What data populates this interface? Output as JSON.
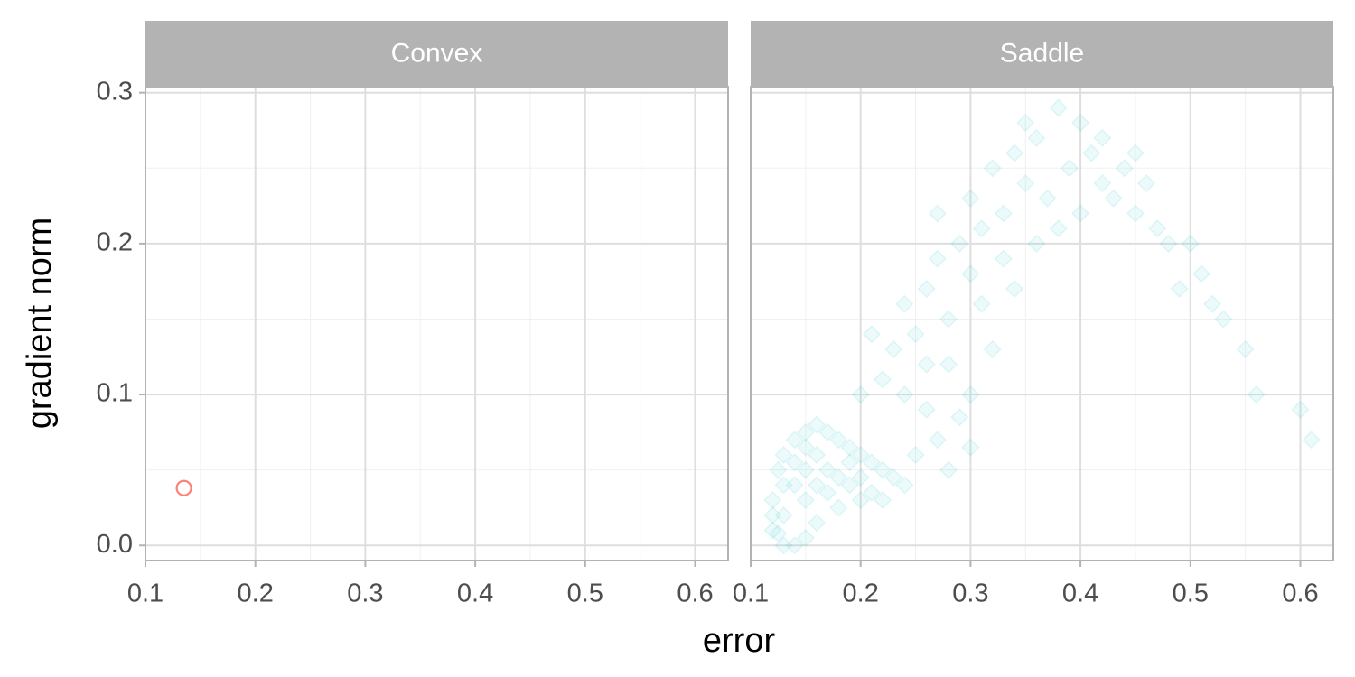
{
  "chart_data": {
    "type": "scatter",
    "xlabel": "error",
    "ylabel": "gradient norm",
    "xlim": [
      0.1,
      0.63
    ],
    "ylim": [
      -0.01,
      0.304
    ],
    "xticks": [
      0.1,
      0.2,
      0.3,
      0.4,
      0.5,
      0.6
    ],
    "yticks": [
      {
        "value": 0,
        "label": "0.0"
      },
      0.1,
      0.2,
      0.3
    ],
    "grid": true,
    "panels": [
      {
        "title": "Convex",
        "color": "#F8766D",
        "marker": "circle",
        "alpha": 0.9,
        "x": [
          0.135
        ],
        "y": [
          0.038
        ]
      },
      {
        "title": "Saddle",
        "color": "#00BFC4",
        "marker": "diamond",
        "alpha": 0.22,
        "x": [
          0.12,
          0.13,
          0.14,
          0.15,
          0.12,
          0.125,
          0.13,
          0.14,
          0.15,
          0.16,
          0.17,
          0.18,
          0.19,
          0.2,
          0.21,
          0.22,
          0.23,
          0.2,
          0.18,
          0.16,
          0.13,
          0.14,
          0.15,
          0.16,
          0.17,
          0.18,
          0.19,
          0.15,
          0.17,
          0.14,
          0.13,
          0.12,
          0.16,
          0.2,
          0.21,
          0.24,
          0.22,
          0.19,
          0.15,
          0.125,
          0.25,
          0.27,
          0.28,
          0.3,
          0.29,
          0.26,
          0.24,
          0.22,
          0.2,
          0.23,
          0.25,
          0.21,
          0.24,
          0.26,
          0.28,
          0.27,
          0.29,
          0.3,
          0.31,
          0.33,
          0.3,
          0.32,
          0.34,
          0.35,
          0.36,
          0.38,
          0.4,
          0.41,
          0.39,
          0.42,
          0.44,
          0.43,
          0.45,
          0.46,
          0.47,
          0.48,
          0.5,
          0.51,
          0.49,
          0.52,
          0.53,
          0.55,
          0.56,
          0.6,
          0.61,
          0.37,
          0.35,
          0.33,
          0.31,
          0.28,
          0.3,
          0.32,
          0.26,
          0.36,
          0.4,
          0.38,
          0.45,
          0.42,
          0.34,
          0.27
        ],
        "y": [
          0.01,
          0.0,
          0.0,
          0.005,
          0.03,
          0.05,
          0.06,
          0.07,
          0.075,
          0.08,
          0.075,
          0.07,
          0.065,
          0.06,
          0.055,
          0.05,
          0.045,
          0.03,
          0.025,
          0.015,
          0.02,
          0.04,
          0.05,
          0.06,
          0.05,
          0.045,
          0.04,
          0.03,
          0.035,
          0.055,
          0.04,
          0.02,
          0.04,
          0.045,
          0.035,
          0.04,
          0.03,
          0.055,
          0.065,
          0.008,
          0.06,
          0.07,
          0.05,
          0.065,
          0.085,
          0.09,
          0.1,
          0.11,
          0.1,
          0.13,
          0.14,
          0.14,
          0.16,
          0.17,
          0.15,
          0.19,
          0.2,
          0.18,
          0.21,
          0.22,
          0.23,
          0.25,
          0.26,
          0.28,
          0.27,
          0.29,
          0.28,
          0.26,
          0.25,
          0.27,
          0.25,
          0.23,
          0.22,
          0.24,
          0.21,
          0.2,
          0.2,
          0.18,
          0.17,
          0.16,
          0.15,
          0.13,
          0.1,
          0.09,
          0.07,
          0.23,
          0.24,
          0.19,
          0.16,
          0.12,
          0.1,
          0.13,
          0.12,
          0.2,
          0.22,
          0.21,
          0.26,
          0.24,
          0.17,
          0.22
        ]
      }
    ]
  }
}
